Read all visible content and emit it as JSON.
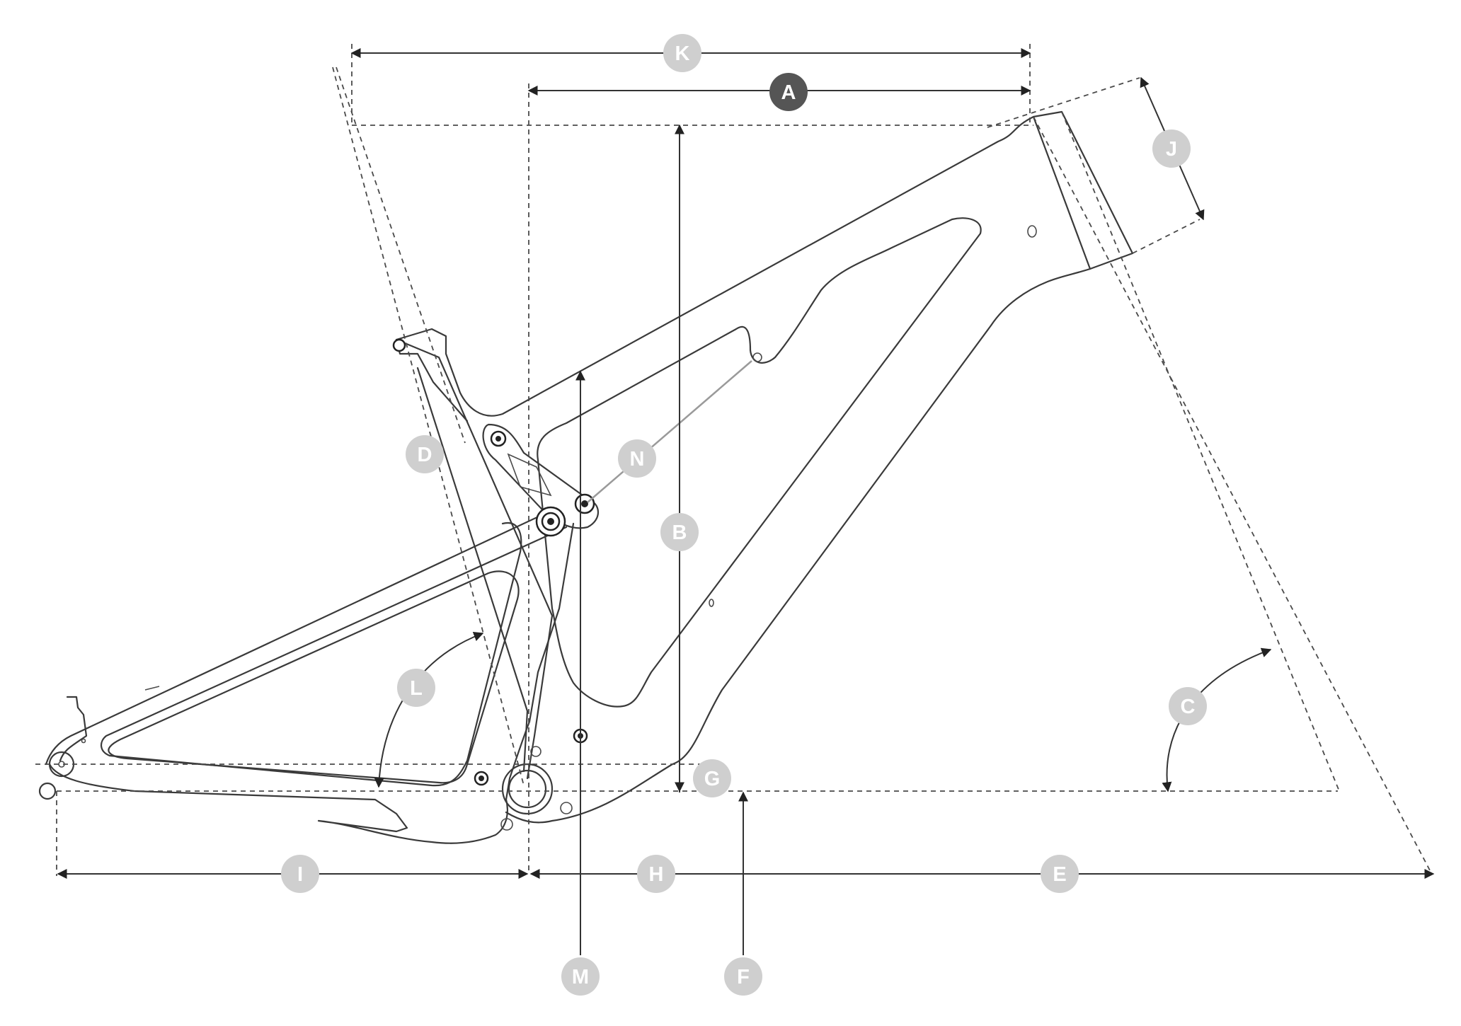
{
  "colors": {
    "line": "#333333",
    "badge": "#cfcfcf",
    "badge_highlight": "#555555",
    "badge_text": "#ffffff",
    "lever": "#9a9a9a"
  },
  "labels": {
    "K": "K",
    "A": "A",
    "J": "J",
    "D": "D",
    "N": "N",
    "B": "B",
    "L": "L",
    "C": "C",
    "G": "G",
    "I": "I",
    "H": "H",
    "E": "E",
    "M": "M",
    "F": "F"
  }
}
